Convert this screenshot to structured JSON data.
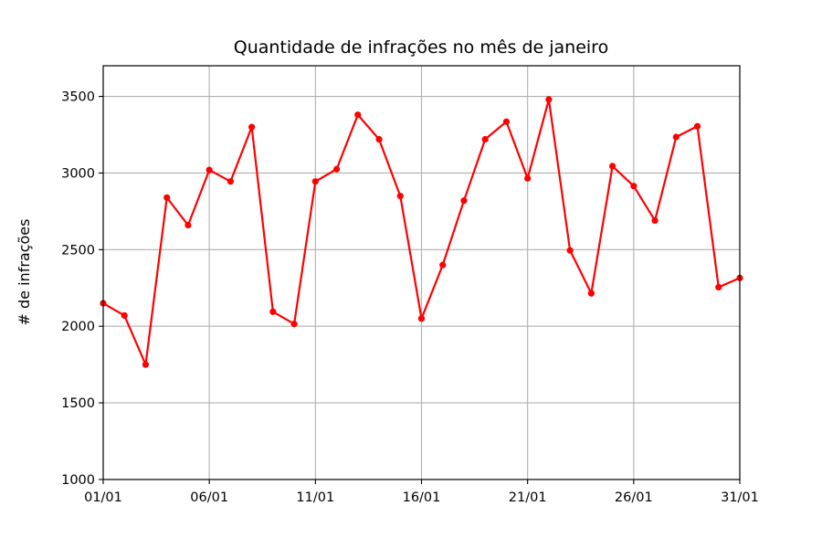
{
  "chart_data": {
    "type": "line",
    "title": "Quantidade de infrações no mês de janeiro",
    "xlabel": "",
    "ylabel": "# de infrações",
    "x": [
      "01/01",
      "02/01",
      "03/01",
      "04/01",
      "05/01",
      "06/01",
      "07/01",
      "08/01",
      "09/01",
      "10/01",
      "11/01",
      "12/01",
      "13/01",
      "14/01",
      "15/01",
      "16/01",
      "17/01",
      "18/01",
      "19/01",
      "20/01",
      "21/01",
      "22/01",
      "23/01",
      "24/01",
      "25/01",
      "26/01",
      "27/01",
      "28/01",
      "29/01",
      "30/01",
      "31/01"
    ],
    "series": [
      {
        "name": "infrações",
        "color": "#ff0000",
        "marker": "circle",
        "values": [
          2150,
          2070,
          1750,
          2840,
          2660,
          3020,
          2945,
          3300,
          2095,
          2015,
          2945,
          3025,
          3380,
          3220,
          2850,
          2050,
          2400,
          2820,
          3220,
          3335,
          2965,
          3480,
          2495,
          2215,
          3045,
          2915,
          2690,
          3235,
          3305,
          2255,
          2315
        ]
      }
    ],
    "xticks": [
      "01/01",
      "06/01",
      "11/01",
      "16/01",
      "21/01",
      "26/01",
      "31/01"
    ],
    "yticks": [
      1000,
      1500,
      2000,
      2500,
      3000,
      3500
    ],
    "ylim": [
      1000,
      3700
    ],
    "grid": true
  }
}
